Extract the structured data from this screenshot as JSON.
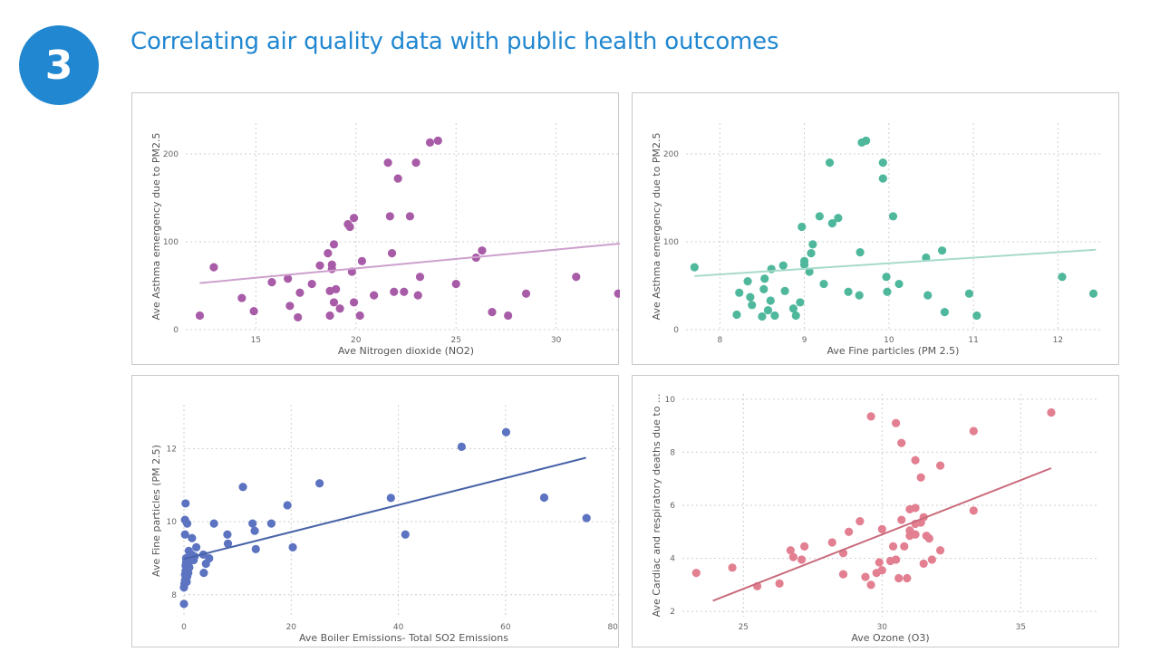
{
  "slide": {
    "step_number": "3",
    "title": "Correlating air quality data with public health outcomes"
  },
  "chart_data": [
    {
      "type": "scatter",
      "xlabel": "Ave Nitrogen dioxide (NO2)",
      "ylabel": "Ave Asthma emergency due to PM2.5",
      "xlim": [
        11.5,
        33.5
      ],
      "ylim": [
        0,
        235
      ],
      "xticks": [
        15,
        20,
        25,
        30
      ],
      "yticks": [
        0,
        100,
        200
      ],
      "color": "#a85ca8",
      "trendline_color": "#cda0cd",
      "trendline": {
        "x": [
          12.2,
          33.2
        ],
        "y": [
          53,
          98
        ]
      },
      "points": [
        {
          "x": 12.2,
          "y": 16
        },
        {
          "x": 12.9,
          "y": 71
        },
        {
          "x": 14.3,
          "y": 36
        },
        {
          "x": 14.9,
          "y": 21
        },
        {
          "x": 15.8,
          "y": 54
        },
        {
          "x": 16.6,
          "y": 58
        },
        {
          "x": 16.7,
          "y": 27
        },
        {
          "x": 17.1,
          "y": 14
        },
        {
          "x": 17.2,
          "y": 42
        },
        {
          "x": 17.8,
          "y": 52
        },
        {
          "x": 18.2,
          "y": 73
        },
        {
          "x": 18.6,
          "y": 87
        },
        {
          "x": 18.7,
          "y": 16
        },
        {
          "x": 18.7,
          "y": 44
        },
        {
          "x": 18.8,
          "y": 74
        },
        {
          "x": 18.8,
          "y": 69
        },
        {
          "x": 18.9,
          "y": 97
        },
        {
          "x": 18.9,
          "y": 31
        },
        {
          "x": 19.0,
          "y": 46
        },
        {
          "x": 19.2,
          "y": 24
        },
        {
          "x": 19.6,
          "y": 120
        },
        {
          "x": 19.7,
          "y": 117
        },
        {
          "x": 19.8,
          "y": 66
        },
        {
          "x": 19.9,
          "y": 127
        },
        {
          "x": 19.9,
          "y": 31
        },
        {
          "x": 20.2,
          "y": 16
        },
        {
          "x": 20.3,
          "y": 78
        },
        {
          "x": 20.9,
          "y": 39
        },
        {
          "x": 21.6,
          "y": 190
        },
        {
          "x": 21.7,
          "y": 129
        },
        {
          "x": 21.8,
          "y": 87
        },
        {
          "x": 21.9,
          "y": 43
        },
        {
          "x": 22.1,
          "y": 172
        },
        {
          "x": 22.4,
          "y": 43
        },
        {
          "x": 22.7,
          "y": 129
        },
        {
          "x": 23.0,
          "y": 190
        },
        {
          "x": 23.1,
          "y": 39
        },
        {
          "x": 23.2,
          "y": 60
        },
        {
          "x": 23.7,
          "y": 213
        },
        {
          "x": 24.1,
          "y": 215
        },
        {
          "x": 25.0,
          "y": 52
        },
        {
          "x": 26.0,
          "y": 82
        },
        {
          "x": 26.3,
          "y": 90
        },
        {
          "x": 26.8,
          "y": 20
        },
        {
          "x": 27.6,
          "y": 16
        },
        {
          "x": 28.5,
          "y": 41
        },
        {
          "x": 31.0,
          "y": 60
        },
        {
          "x": 33.1,
          "y": 41
        }
      ]
    },
    {
      "type": "scatter",
      "xlabel": "Ave Fine particles (PM 2.5)",
      "ylabel": "Ave Asthma emergency due to PM2.5",
      "xlim": [
        7.6,
        12.5
      ],
      "ylim": [
        0,
        235
      ],
      "xticks": [
        8,
        9,
        10,
        11,
        12
      ],
      "yticks": [
        0,
        100,
        200
      ],
      "color": "#4fb89c",
      "trendline_color": "#a7dacb",
      "trendline": {
        "x": [
          7.7,
          12.45
        ],
        "y": [
          61,
          91
        ]
      },
      "points": [
        {
          "x": 7.7,
          "y": 71
        },
        {
          "x": 8.2,
          "y": 17
        },
        {
          "x": 8.23,
          "y": 42
        },
        {
          "x": 8.33,
          "y": 55
        },
        {
          "x": 8.36,
          "y": 37
        },
        {
          "x": 8.38,
          "y": 28
        },
        {
          "x": 8.5,
          "y": 15
        },
        {
          "x": 8.52,
          "y": 46
        },
        {
          "x": 8.53,
          "y": 58
        },
        {
          "x": 8.57,
          "y": 22
        },
        {
          "x": 8.6,
          "y": 33
        },
        {
          "x": 8.61,
          "y": 69
        },
        {
          "x": 8.65,
          "y": 16
        },
        {
          "x": 8.75,
          "y": 73
        },
        {
          "x": 8.77,
          "y": 44
        },
        {
          "x": 8.87,
          "y": 24
        },
        {
          "x": 8.9,
          "y": 16
        },
        {
          "x": 8.95,
          "y": 31
        },
        {
          "x": 8.97,
          "y": 117
        },
        {
          "x": 9.0,
          "y": 78
        },
        {
          "x": 9.0,
          "y": 74
        },
        {
          "x": 9.06,
          "y": 66
        },
        {
          "x": 9.08,
          "y": 87
        },
        {
          "x": 9.1,
          "y": 97
        },
        {
          "x": 9.18,
          "y": 129
        },
        {
          "x": 9.23,
          "y": 52
        },
        {
          "x": 9.3,
          "y": 190
        },
        {
          "x": 9.33,
          "y": 121
        },
        {
          "x": 9.4,
          "y": 127
        },
        {
          "x": 9.52,
          "y": 43
        },
        {
          "x": 9.65,
          "y": 39
        },
        {
          "x": 9.66,
          "y": 88
        },
        {
          "x": 9.68,
          "y": 213
        },
        {
          "x": 9.73,
          "y": 215
        },
        {
          "x": 9.93,
          "y": 190
        },
        {
          "x": 9.93,
          "y": 172
        },
        {
          "x": 9.97,
          "y": 60
        },
        {
          "x": 9.98,
          "y": 43
        },
        {
          "x": 10.05,
          "y": 129
        },
        {
          "x": 10.12,
          "y": 52
        },
        {
          "x": 10.44,
          "y": 82
        },
        {
          "x": 10.46,
          "y": 39
        },
        {
          "x": 10.63,
          "y": 90
        },
        {
          "x": 10.66,
          "y": 20
        },
        {
          "x": 10.95,
          "y": 41
        },
        {
          "x": 11.04,
          "y": 16
        },
        {
          "x": 12.05,
          "y": 60
        },
        {
          "x": 12.42,
          "y": 41
        }
      ]
    },
    {
      "type": "scatter",
      "xlabel": "Ave Boiler Emissions- Total SO2 Emissions",
      "ylabel": "Ave Fine particles (PM 2.5)",
      "xlim": [
        0,
        82
      ],
      "ylim": [
        7.4,
        13.2
      ],
      "xticks": [
        0,
        20,
        40,
        60,
        80
      ],
      "yticks": [
        8,
        10,
        12
      ],
      "color": "#5b73c0",
      "trendline_color": "#4863a8",
      "trendline": {
        "x": [
          0,
          75
        ],
        "y": [
          8.98,
          11.75
        ]
      },
      "points": [
        {
          "x": 0.0,
          "y": 7.75
        },
        {
          "x": 0.0,
          "y": 8.2
        },
        {
          "x": 0.1,
          "y": 8.3
        },
        {
          "x": 0.2,
          "y": 8.4
        },
        {
          "x": 0.2,
          "y": 8.55
        },
        {
          "x": 0.3,
          "y": 8.65
        },
        {
          "x": 0.3,
          "y": 8.8
        },
        {
          "x": 0.4,
          "y": 8.9
        },
        {
          "x": 0.4,
          "y": 9.0
        },
        {
          "x": 0.5,
          "y": 8.35
        },
        {
          "x": 0.6,
          "y": 8.5
        },
        {
          "x": 0.8,
          "y": 8.6
        },
        {
          "x": 1.0,
          "y": 8.75
        },
        {
          "x": 1.2,
          "y": 8.95
        },
        {
          "x": 1.4,
          "y": 9.1
        },
        {
          "x": 0.2,
          "y": 9.65
        },
        {
          "x": 0.2,
          "y": 10.05
        },
        {
          "x": 0.3,
          "y": 10.5
        },
        {
          "x": 0.6,
          "y": 9.95
        },
        {
          "x": 0.9,
          "y": 9.2
        },
        {
          "x": 1.5,
          "y": 9.55
        },
        {
          "x": 1.8,
          "y": 8.95
        },
        {
          "x": 2.0,
          "y": 9.05
        },
        {
          "x": 2.3,
          "y": 9.3
        },
        {
          "x": 3.6,
          "y": 9.1
        },
        {
          "x": 3.7,
          "y": 8.6
        },
        {
          "x": 4.1,
          "y": 8.85
        },
        {
          "x": 4.7,
          "y": 9.0
        },
        {
          "x": 5.6,
          "y": 9.95
        },
        {
          "x": 8.1,
          "y": 9.65
        },
        {
          "x": 8.2,
          "y": 9.4
        },
        {
          "x": 11.0,
          "y": 10.95
        },
        {
          "x": 12.8,
          "y": 9.95
        },
        {
          "x": 13.2,
          "y": 9.75
        },
        {
          "x": 13.4,
          "y": 9.25
        },
        {
          "x": 16.3,
          "y": 9.95
        },
        {
          "x": 19.3,
          "y": 10.45
        },
        {
          "x": 20.3,
          "y": 9.3
        },
        {
          "x": 25.3,
          "y": 11.05
        },
        {
          "x": 38.6,
          "y": 10.65
        },
        {
          "x": 41.3,
          "y": 9.65
        },
        {
          "x": 51.8,
          "y": 12.05
        },
        {
          "x": 60.1,
          "y": 12.45
        },
        {
          "x": 67.2,
          "y": 10.66
        },
        {
          "x": 75.1,
          "y": 10.1
        }
      ]
    },
    {
      "type": "scatter",
      "xlabel": "Ave Ozone (O3)",
      "ylabel": "Ave Cardiac and respiratory deaths due to ...",
      "xlim": [
        22.8,
        37.8
      ],
      "ylim": [
        1.8,
        10.2
      ],
      "xticks": [
        25,
        30,
        35
      ],
      "yticks": [
        2,
        4,
        6,
        8,
        10
      ],
      "color": "#e27f91",
      "trendline_color": "#c96b7c",
      "trendline": {
        "x": [
          23.9,
          36.1
        ],
        "y": [
          2.4,
          7.4
        ]
      },
      "points": [
        {
          "x": 23.3,
          "y": 3.45
        },
        {
          "x": 24.6,
          "y": 3.65
        },
        {
          "x": 25.5,
          "y": 2.95
        },
        {
          "x": 26.3,
          "y": 3.05
        },
        {
          "x": 26.7,
          "y": 4.3
        },
        {
          "x": 26.8,
          "y": 4.05
        },
        {
          "x": 27.1,
          "y": 3.95
        },
        {
          "x": 27.2,
          "y": 4.45
        },
        {
          "x": 28.2,
          "y": 4.6
        },
        {
          "x": 28.6,
          "y": 4.2
        },
        {
          "x": 28.6,
          "y": 3.4
        },
        {
          "x": 28.8,
          "y": 5.0
        },
        {
          "x": 29.2,
          "y": 5.4
        },
        {
          "x": 29.4,
          "y": 3.3
        },
        {
          "x": 29.6,
          "y": 9.35
        },
        {
          "x": 29.6,
          "y": 3.0
        },
        {
          "x": 29.8,
          "y": 3.45
        },
        {
          "x": 29.9,
          "y": 3.85
        },
        {
          "x": 30.0,
          "y": 3.55
        },
        {
          "x": 30.0,
          "y": 5.1
        },
        {
          "x": 30.3,
          "y": 3.9
        },
        {
          "x": 30.4,
          "y": 4.45
        },
        {
          "x": 30.5,
          "y": 3.95
        },
        {
          "x": 30.5,
          "y": 9.1
        },
        {
          "x": 30.6,
          "y": 3.25
        },
        {
          "x": 30.7,
          "y": 8.35
        },
        {
          "x": 30.7,
          "y": 5.45
        },
        {
          "x": 30.8,
          "y": 4.45
        },
        {
          "x": 30.9,
          "y": 3.25
        },
        {
          "x": 31.0,
          "y": 5.85
        },
        {
          "x": 31.0,
          "y": 5.05
        },
        {
          "x": 31.0,
          "y": 4.85
        },
        {
          "x": 31.2,
          "y": 7.7
        },
        {
          "x": 31.2,
          "y": 5.9
        },
        {
          "x": 31.2,
          "y": 4.9
        },
        {
          "x": 31.2,
          "y": 5.3
        },
        {
          "x": 31.4,
          "y": 7.05
        },
        {
          "x": 31.4,
          "y": 5.35
        },
        {
          "x": 31.5,
          "y": 5.55
        },
        {
          "x": 31.5,
          "y": 3.8
        },
        {
          "x": 31.6,
          "y": 4.85
        },
        {
          "x": 31.7,
          "y": 4.75
        },
        {
          "x": 31.8,
          "y": 3.95
        },
        {
          "x": 32.1,
          "y": 4.3
        },
        {
          "x": 32.1,
          "y": 7.5
        },
        {
          "x": 33.3,
          "y": 8.8
        },
        {
          "x": 33.3,
          "y": 5.8
        },
        {
          "x": 36.1,
          "y": 9.5
        }
      ]
    }
  ]
}
